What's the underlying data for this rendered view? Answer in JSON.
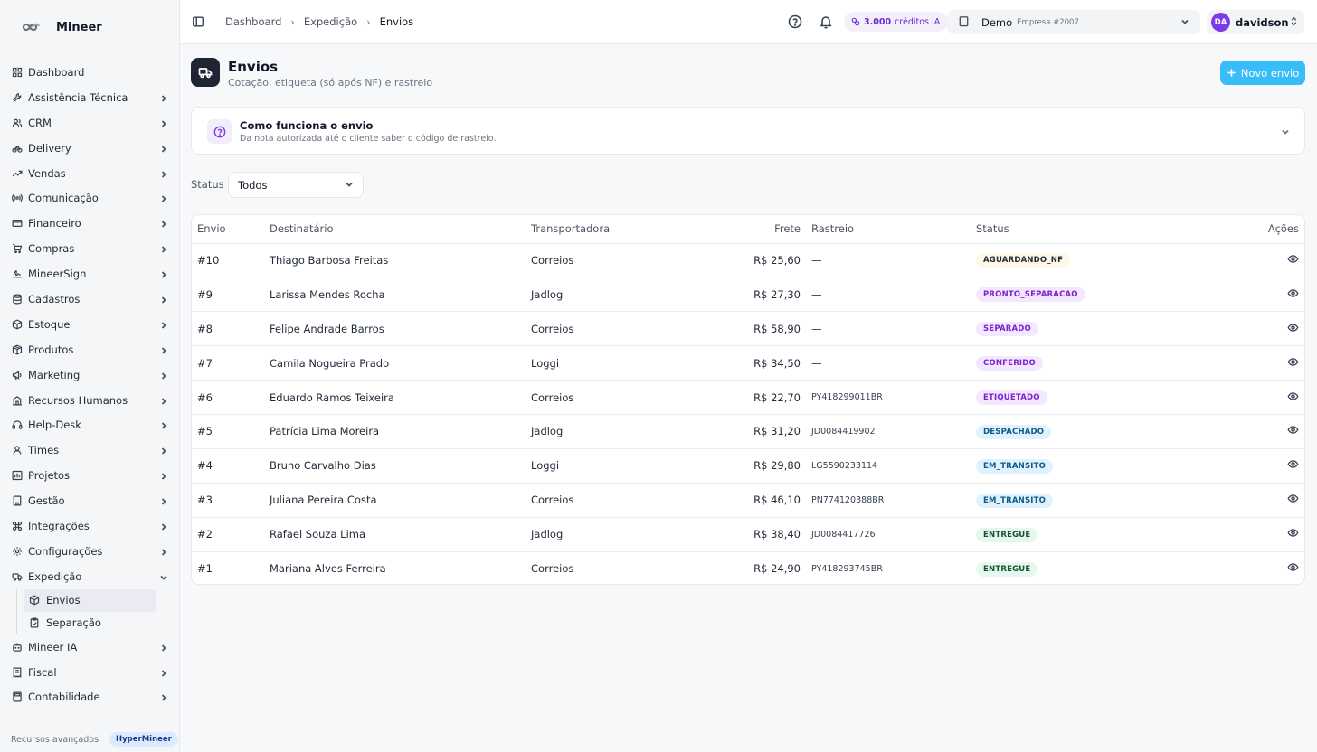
{
  "app": {
    "name": "Mineer"
  },
  "sidebar": {
    "items": [
      {
        "label": "Dashboard",
        "icon": "dashboard-icon",
        "chevron": false
      },
      {
        "label": "Assistência Técnica",
        "icon": "wrench-icon",
        "chevron": true
      },
      {
        "label": "CRM",
        "icon": "users-icon",
        "chevron": true
      },
      {
        "label": "Delivery",
        "icon": "bike-icon",
        "chevron": true
      },
      {
        "label": "Vendas",
        "icon": "trending-icon",
        "chevron": true
      },
      {
        "label": "Comunicação",
        "icon": "radio-icon",
        "chevron": true
      },
      {
        "label": "Financeiro",
        "icon": "card-icon",
        "chevron": true
      },
      {
        "label": "Compras",
        "icon": "cart-icon",
        "chevron": true
      },
      {
        "label": "MineerSign",
        "icon": "signature-icon",
        "chevron": true
      },
      {
        "label": "Cadastros",
        "icon": "database-icon",
        "chevron": true
      },
      {
        "label": "Estoque",
        "icon": "box-icon",
        "chevron": true
      },
      {
        "label": "Produtos",
        "icon": "package-icon",
        "chevron": true
      },
      {
        "label": "Marketing",
        "icon": "megaphone-icon",
        "chevron": true
      },
      {
        "label": "Recursos Humanos",
        "icon": "building-icon",
        "chevron": true
      },
      {
        "label": "Help-Desk",
        "icon": "headset-icon",
        "chevron": true
      },
      {
        "label": "Times",
        "icon": "team-icon",
        "chevron": true
      },
      {
        "label": "Projetos",
        "icon": "chart-icon",
        "chevron": true
      },
      {
        "label": "Gestão",
        "icon": "office-icon",
        "chevron": true
      },
      {
        "label": "Integrações",
        "icon": "command-icon",
        "chevron": true
      },
      {
        "label": "Configurações",
        "icon": "gear-icon",
        "chevron": true
      },
      {
        "label": "Expedição",
        "icon": "truck-icon",
        "chevron": true,
        "expanded": true
      }
    ],
    "subitems": [
      {
        "label": "Envios",
        "icon": "box-icon",
        "active": true
      },
      {
        "label": "Separação",
        "icon": "clipboard-icon",
        "active": false
      }
    ],
    "items_after": [
      {
        "label": "Mineer IA",
        "icon": "bot-icon",
        "chevron": true
      },
      {
        "label": "Fiscal",
        "icon": "receipt-icon",
        "chevron": true
      },
      {
        "label": "Contabilidade",
        "icon": "calculator-icon",
        "chevron": true
      }
    ],
    "footer": {
      "text": "Recursos avançados",
      "pill": "HyperMineer"
    }
  },
  "topbar": {
    "breadcrumb": [
      "Dashboard",
      "Expedição",
      "Envios"
    ],
    "credits": {
      "amount": "3.000",
      "label": "créditos IA"
    },
    "company": {
      "name": "Demo",
      "sub": "Empresa #2007"
    },
    "user": {
      "initials": "DA",
      "name": "davidson"
    }
  },
  "page": {
    "title": "Envios",
    "subtitle": "Cotação, etiqueta (só após NF) e rastreio",
    "new_button": "Novo envio"
  },
  "info": {
    "title": "Como funciona o envio",
    "desc": "Da nota autorizada até o cliente saber o código de rastreio."
  },
  "filter": {
    "label": "Status",
    "value": "Todos"
  },
  "table": {
    "headers": [
      "Envio",
      "Destinatário",
      "Transportadora",
      "Frete",
      "Rastreio",
      "Status",
      "Ações"
    ],
    "rows": [
      {
        "envio": "#10",
        "dest": "Thiago Barbosa Freitas",
        "trans": "Correios",
        "frete": "R$ 25,60",
        "rastreio": "—",
        "status": "AGUARDANDO_NF",
        "bg": "#fef6e7",
        "fg": "#1f2937"
      },
      {
        "envio": "#9",
        "dest": "Larissa Mendes Rocha",
        "trans": "Jadlog",
        "frete": "R$ 27,30",
        "rastreio": "—",
        "status": "PRONTO_SEPARACAO",
        "bg": "#f3e8ff",
        "fg": "#7e22ce"
      },
      {
        "envio": "#8",
        "dest": "Felipe Andrade Barros",
        "trans": "Correios",
        "frete": "R$ 58,90",
        "rastreio": "—",
        "status": "SEPARADO",
        "bg": "#f3e8ff",
        "fg": "#7e22ce"
      },
      {
        "envio": "#7",
        "dest": "Camila Nogueira Prado",
        "trans": "Loggi",
        "frete": "R$ 34,50",
        "rastreio": "—",
        "status": "CONFERIDO",
        "bg": "#f3e8ff",
        "fg": "#7e22ce"
      },
      {
        "envio": "#6",
        "dest": "Eduardo Ramos Teixeira",
        "trans": "Correios",
        "frete": "R$ 22,70",
        "rastreio": "PY418299011BR",
        "status": "ETIQUETADO",
        "bg": "#f3e8ff",
        "fg": "#7e22ce"
      },
      {
        "envio": "#5",
        "dest": "Patrícia Lima Moreira",
        "trans": "Jadlog",
        "frete": "R$ 31,20",
        "rastreio": "JD0084419902",
        "status": "DESPACHADO",
        "bg": "#e0f2fe",
        "fg": "#0c5a8a"
      },
      {
        "envio": "#4",
        "dest": "Bruno Carvalho Dias",
        "trans": "Loggi",
        "frete": "R$ 29,80",
        "rastreio": "LG5590233114",
        "status": "EM_TRANSITO",
        "bg": "#e0f2fe",
        "fg": "#0c5a8a"
      },
      {
        "envio": "#3",
        "dest": "Juliana Pereira Costa",
        "trans": "Correios",
        "frete": "R$ 46,10",
        "rastreio": "PN774120388BR",
        "status": "EM_TRANSITO",
        "bg": "#e0f2fe",
        "fg": "#0c5a8a"
      },
      {
        "envio": "#2",
        "dest": "Rafael Souza Lima",
        "trans": "Jadlog",
        "frete": "R$ 38,40",
        "rastreio": "JD0084417726",
        "status": "ENTREGUE",
        "bg": "#e8f7ee",
        "fg": "#14532d"
      },
      {
        "envio": "#1",
        "dest": "Mariana Alves Ferreira",
        "trans": "Correios",
        "frete": "R$ 24,90",
        "rastreio": "PY418293745BR",
        "status": "ENTREGUE",
        "bg": "#e8f7ee",
        "fg": "#14532d"
      }
    ]
  }
}
